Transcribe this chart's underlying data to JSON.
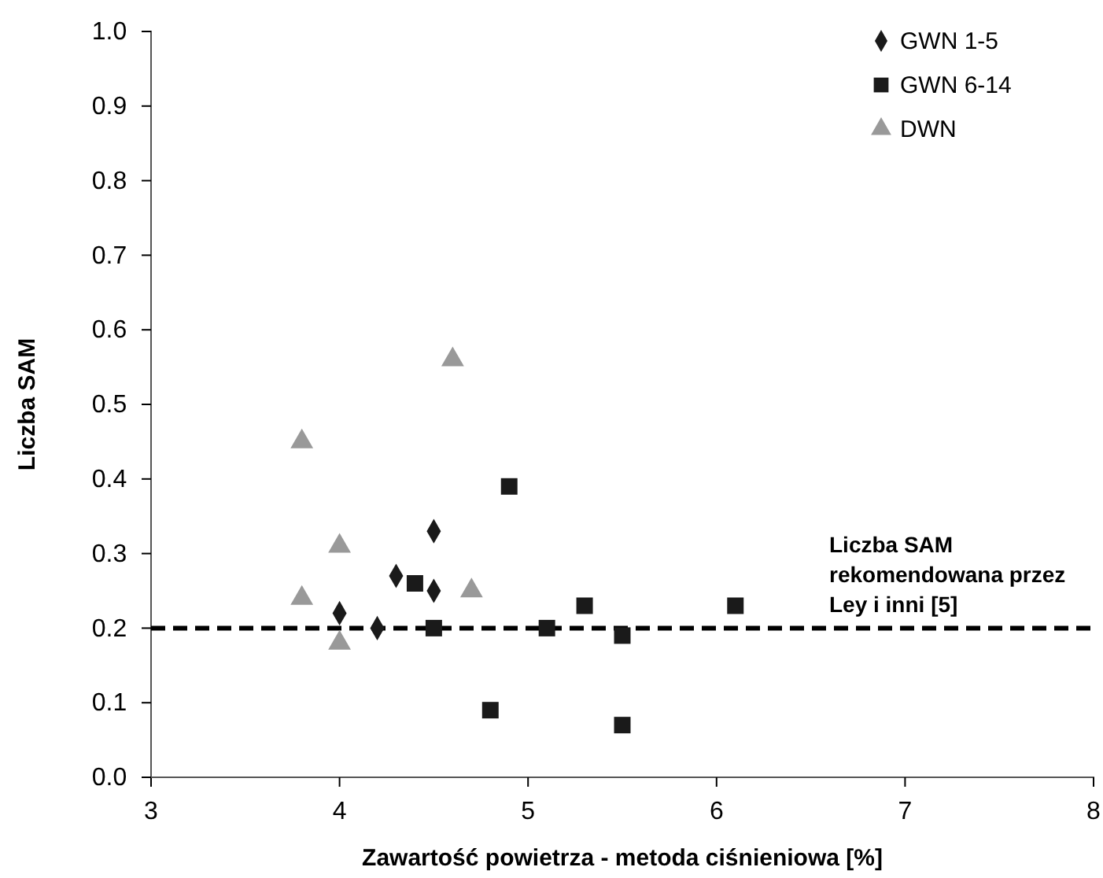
{
  "chart_data": {
    "type": "scatter",
    "xlabel": "Zawartość powietrza - metoda ciśnieniowa [%]",
    "ylabel": "Liczba SAM",
    "xlim": [
      3,
      8
    ],
    "xticks": [
      3,
      4,
      5,
      6,
      7,
      8
    ],
    "ylim": [
      0,
      1
    ],
    "yticks": [
      {
        "value": 0,
        "label": "0.0"
      },
      {
        "value": 0.1,
        "label": "0.1"
      },
      {
        "value": 0.2,
        "label": "0.2"
      },
      {
        "value": 0.3,
        "label": "0.3"
      },
      {
        "value": 0.4,
        "label": "0.4"
      },
      {
        "value": 0.5,
        "label": "0.5"
      },
      {
        "value": 0.6,
        "label": "0.6"
      },
      {
        "value": 0.7,
        "label": "0.7"
      },
      {
        "value": 0.8,
        "label": "0.8"
      },
      {
        "value": 0.9,
        "label": "0.9"
      },
      {
        "value": 1,
        "label": "1.0"
      }
    ],
    "grid": false,
    "legend": "top right",
    "series": [
      {
        "name": "GWN 1-5",
        "color": "#1a1a1a",
        "marker": "diamond",
        "x": [
          4.0,
          4.2,
          4.3,
          4.5,
          4.5
        ],
        "values": [
          0.22,
          0.2,
          0.27,
          0.25,
          0.33
        ]
      },
      {
        "name": "GWN 6-14",
        "color": "#1a1a1a",
        "marker": "square",
        "x": [
          4.4,
          4.5,
          4.9,
          4.8,
          5.1,
          5.3,
          5.5,
          5.5,
          6.1
        ],
        "values": [
          0.26,
          0.2,
          0.39,
          0.09,
          0.2,
          0.23,
          0.19,
          0.07,
          0.23
        ]
      },
      {
        "name": "DWN",
        "color": "#999999",
        "marker": "triangle",
        "x": [
          3.8,
          3.8,
          4.0,
          4.0,
          4.6,
          4.7
        ],
        "values": [
          0.45,
          0.24,
          0.31,
          0.18,
          0.56,
          0.25
        ]
      }
    ],
    "ref_lines": [
      {
        "axis": "y",
        "value": 0.2,
        "label": "Liczba SAM rekomendowana przez Ley i inni [5]",
        "color": "#000000",
        "line_style": "dashed"
      }
    ]
  }
}
